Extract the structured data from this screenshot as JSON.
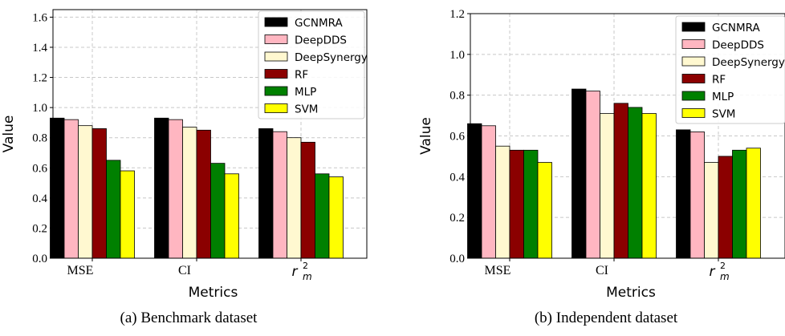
{
  "chart_data": [
    {
      "type": "bar",
      "caption": "(a) Benchmark dataset",
      "xlabel": "Metrics",
      "ylabel": "Value",
      "ylim": [
        0,
        1.65
      ],
      "yticks": [
        "0.0",
        "0.2",
        "0.4",
        "0.6",
        "0.8",
        "1.0",
        "1.2",
        "1.4",
        "1.6"
      ],
      "ytick_values": [
        0,
        0.2,
        0.4,
        0.6,
        0.8,
        1.0,
        1.2,
        1.4,
        1.6
      ],
      "categories": [
        "MSE",
        "CI",
        "r_m^2"
      ],
      "grid": true,
      "legend_position": "top-right",
      "series": [
        {
          "name": "GCNMRA",
          "color": "#000000",
          "values": [
            0.93,
            0.93,
            0.86
          ]
        },
        {
          "name": "DeepDDS",
          "color": "#ffb6c1",
          "values": [
            0.92,
            0.92,
            0.84
          ]
        },
        {
          "name": "DeepSynergy",
          "color": "#fff8d0",
          "values": [
            0.88,
            0.87,
            0.8
          ]
        },
        {
          "name": "RF",
          "color": "#8b0000",
          "values": [
            0.86,
            0.85,
            0.77
          ]
        },
        {
          "name": "MLP",
          "color": "#008000",
          "values": [
            0.65,
            0.63,
            0.56
          ]
        },
        {
          "name": "SVM",
          "color": "#ffff00",
          "values": [
            0.58,
            0.56,
            0.54
          ]
        }
      ]
    },
    {
      "type": "bar",
      "caption": "(b) Independent dataset",
      "xlabel": "Metrics",
      "ylabel": "Value",
      "ylim": [
        0,
        1.2
      ],
      "yticks": [
        "0.0",
        "0.2",
        "0.4",
        "0.6",
        "0.8",
        "1.0",
        "1.2"
      ],
      "ytick_values": [
        0,
        0.2,
        0.4,
        0.6,
        0.8,
        1.0,
        1.2
      ],
      "categories": [
        "MSE",
        "CI",
        "r_m^2"
      ],
      "grid": true,
      "legend_position": "top-right",
      "series": [
        {
          "name": "GCNMRA",
          "color": "#000000",
          "values": [
            0.66,
            0.83,
            0.63
          ]
        },
        {
          "name": "DeepDDS",
          "color": "#ffb6c1",
          "values": [
            0.65,
            0.82,
            0.62
          ]
        },
        {
          "name": "DeepSynergy",
          "color": "#fff8d0",
          "values": [
            0.55,
            0.71,
            0.47
          ]
        },
        {
          "name": "RF",
          "color": "#8b0000",
          "values": [
            0.53,
            0.76,
            0.5
          ]
        },
        {
          "name": "MLP",
          "color": "#008000",
          "values": [
            0.53,
            0.74,
            0.53
          ]
        },
        {
          "name": "SVM",
          "color": "#ffff00",
          "values": [
            0.47,
            0.71,
            0.54
          ]
        }
      ]
    }
  ]
}
